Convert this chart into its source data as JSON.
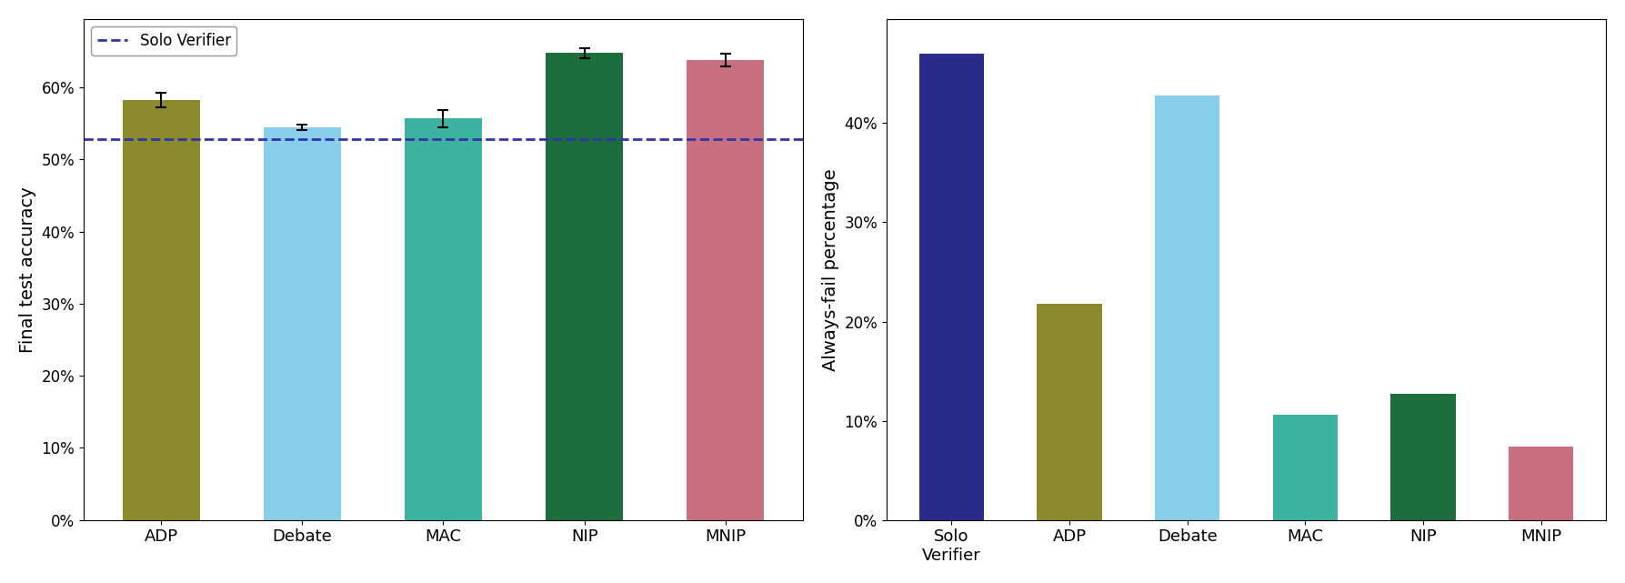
{
  "left_chart": {
    "categories": [
      "ADP",
      "Debate",
      "MAC",
      "NIP",
      "MNIP"
    ],
    "values": [
      0.582,
      0.545,
      0.557,
      0.648,
      0.638
    ],
    "errors": [
      0.01,
      0.004,
      0.012,
      0.007,
      0.009
    ],
    "colors": [
      "#8B8B2B",
      "#87CEEB",
      "#3CB3A0",
      "#1D6E3D",
      "#C97080"
    ],
    "ylabel": "Final test accuracy",
    "hline_value": 0.528,
    "hline_label": "Solo Verifier",
    "hline_color": "#3333AA",
    "ylim": [
      0,
      0.695
    ],
    "yticks": [
      0.0,
      0.1,
      0.2,
      0.3,
      0.4,
      0.5,
      0.6
    ]
  },
  "right_chart": {
    "categories": [
      "Solo\nVerifier",
      "ADP",
      "Debate",
      "MAC",
      "NIP",
      "MNIP"
    ],
    "values": [
      0.47,
      0.218,
      0.428,
      0.106,
      0.127,
      0.074
    ],
    "colors": [
      "#2B2B8B",
      "#8B8B2B",
      "#87CEEB",
      "#3CB3A0",
      "#1D6E3D",
      "#C97080"
    ],
    "ylabel": "Always-fail percentage",
    "ylim": [
      0,
      0.505
    ],
    "yticks": [
      0.0,
      0.1,
      0.2,
      0.3,
      0.4
    ]
  }
}
